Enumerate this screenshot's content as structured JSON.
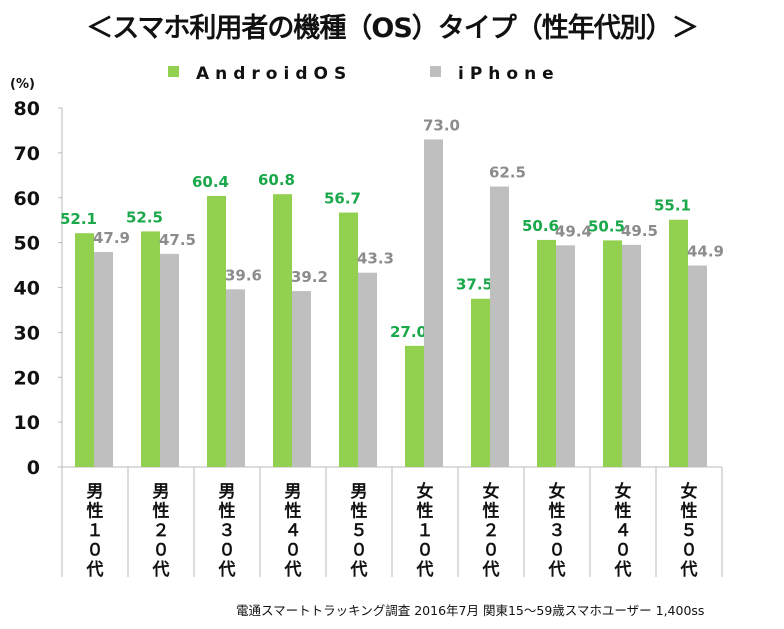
{
  "chart_data": {
    "type": "bar",
    "title": "＜スマホ利用者の機種（OS）タイプ（性年代別）＞",
    "ylabel": "(%)",
    "ylim": [
      0,
      80
    ],
    "yticks": [
      "0",
      "10",
      "20",
      "30",
      "40",
      "50",
      "60",
      "70",
      "80"
    ],
    "grid": false,
    "legend_position": "top",
    "categories": [
      "男性１０代",
      "男性２０代",
      "男性３０代",
      "男性４０代",
      "男性５０代",
      "女性１０代",
      "女性２０代",
      "女性３０代",
      "女性４０代",
      "女性５０代"
    ],
    "series": [
      {
        "name": "AndroidOS",
        "color": "#92d050",
        "label_color": "#1aa84a",
        "values": [
          52.1,
          52.5,
          60.4,
          60.8,
          56.7,
          27.0,
          37.5,
          50.6,
          50.5,
          55.1
        ]
      },
      {
        "name": "iPhone",
        "color": "#bfbfbf",
        "label_color": "#8c8c8c",
        "values": [
          47.9,
          47.5,
          39.6,
          39.2,
          43.3,
          73.0,
          62.5,
          49.4,
          49.5,
          44.9
        ]
      }
    ],
    "source": "電通スマートトラッキング調査  2016年7月   関東15～59歳スマホユーザー   1,400ss"
  }
}
